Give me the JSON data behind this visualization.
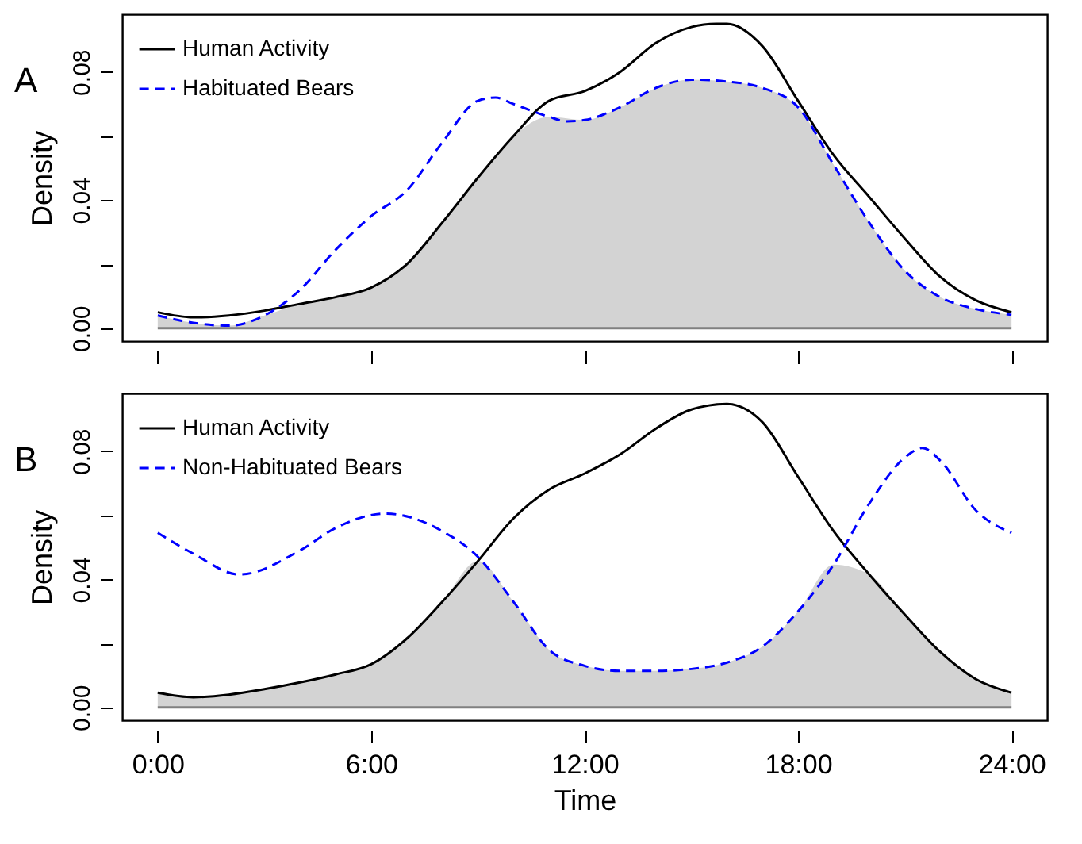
{
  "chart_data": [
    {
      "type": "line",
      "title": "A",
      "ylabel": "Density",
      "xlim": [
        -1,
        25
      ],
      "ylim": [
        -0.004,
        0.098
      ],
      "xticks": [
        {
          "value": 0,
          "label": null
        },
        {
          "value": 6,
          "label": null
        },
        {
          "value": 12,
          "label": null
        },
        {
          "value": 18,
          "label": null
        },
        {
          "value": 24,
          "label": null
        }
      ],
      "yticks": [
        {
          "value": 0,
          "label": "0.00"
        },
        {
          "value": 0.02,
          "label": null
        },
        {
          "value": 0.04,
          "label": "0.04"
        },
        {
          "value": 0.06,
          "label": null
        },
        {
          "value": 0.08,
          "label": "0.08"
        }
      ],
      "tick_labels": "y",
      "grid": false,
      "legend": "top left",
      "ref_lines": [
        {
          "axis": "y",
          "value": 0,
          "color": "#808080"
        }
      ],
      "series": [
        {
          "type": "area",
          "color": "#d3d3d3",
          "x": [
            0,
            1,
            2,
            3,
            4,
            5,
            6,
            7,
            8,
            9,
            10,
            11,
            12,
            13,
            14,
            15,
            16,
            17,
            18,
            19,
            20,
            21,
            22,
            23,
            24
          ],
          "values": [
            0.004,
            0.0017,
            0.0008,
            0.004,
            0.0076,
            0.0097,
            0.0127,
            0.02,
            0.033,
            0.047,
            0.06,
            0.066,
            0.065,
            0.069,
            0.075,
            0.0776,
            0.077,
            0.075,
            0.069,
            0.051,
            0.033,
            0.018,
            0.0097,
            0.006,
            0.0042
          ]
        },
        {
          "name": "Human Activity",
          "color": "#000000",
          "line_style": "solid",
          "x": [
            0,
            1,
            2,
            3,
            4,
            5,
            6,
            7,
            8,
            9,
            10,
            11,
            12,
            13,
            14,
            15,
            15.7,
            16,
            17,
            18,
            19,
            20,
            21,
            22,
            23,
            24
          ],
          "values": [
            0.005,
            0.0034,
            0.004,
            0.0055,
            0.0076,
            0.0097,
            0.0127,
            0.02,
            0.033,
            0.047,
            0.06,
            0.071,
            0.074,
            0.08,
            0.089,
            0.094,
            0.095,
            0.095,
            0.088,
            0.071,
            0.054,
            0.041,
            0.028,
            0.016,
            0.0087,
            0.005
          ]
        },
        {
          "name": "Habituated Bears",
          "color": "#0000ff",
          "line_style": "dashed",
          "x": [
            0,
            1,
            2,
            3,
            4,
            5,
            6,
            7,
            8,
            9,
            9.5,
            10,
            11,
            11.5,
            12,
            13,
            14,
            15,
            16,
            17,
            18,
            19,
            20,
            21,
            22,
            23,
            24
          ],
          "values": [
            0.004,
            0.0017,
            0.0008,
            0.004,
            0.012,
            0.0245,
            0.035,
            0.043,
            0.058,
            0.071,
            0.072,
            0.07,
            0.066,
            0.0646,
            0.065,
            0.069,
            0.075,
            0.0776,
            0.077,
            0.075,
            0.069,
            0.051,
            0.033,
            0.018,
            0.0097,
            0.006,
            0.0042
          ]
        }
      ]
    },
    {
      "type": "line",
      "title": "B",
      "xlabel": "Time",
      "ylabel": "Density",
      "xlim": [
        -1,
        25
      ],
      "ylim": [
        -0.004,
        0.098
      ],
      "xticks": [
        {
          "value": 0,
          "label": "0:00"
        },
        {
          "value": 6,
          "label": "6:00"
        },
        {
          "value": 12,
          "label": "12:00"
        },
        {
          "value": 18,
          "label": "18:00"
        },
        {
          "value": 24,
          "label": "24:00"
        }
      ],
      "yticks": [
        {
          "value": 0,
          "label": "0.00"
        },
        {
          "value": 0.02,
          "label": null
        },
        {
          "value": 0.04,
          "label": "0.04"
        },
        {
          "value": 0.06,
          "label": null
        },
        {
          "value": 0.08,
          "label": "0.08"
        }
      ],
      "grid": false,
      "legend": "top left",
      "ref_lines": [
        {
          "axis": "y",
          "value": 0,
          "color": "#808080"
        }
      ],
      "series": [
        {
          "type": "area",
          "color": "#d3d3d3",
          "x": [
            0,
            1,
            2,
            3,
            4,
            5,
            6,
            7,
            8,
            9,
            10,
            11,
            12,
            13,
            14,
            15,
            16,
            17,
            18,
            19,
            20,
            21,
            22,
            23,
            24
          ],
          "values": [
            0.0046,
            0.0032,
            0.004,
            0.0057,
            0.0078,
            0.0103,
            0.0135,
            0.0215,
            0.033,
            0.0457,
            0.033,
            0.018,
            0.013,
            0.0114,
            0.0114,
            0.012,
            0.014,
            0.019,
            0.03,
            0.0446,
            0.0415,
            0.029,
            0.0173,
            0.0088,
            0.0046
          ]
        },
        {
          "name": "Human Activity",
          "color": "#000000",
          "line_style": "solid",
          "x": [
            0,
            1,
            2,
            3,
            4,
            5,
            6,
            7,
            8,
            9,
            10,
            11,
            12,
            13,
            14,
            15,
            16,
            17,
            18,
            19,
            20,
            21,
            22,
            23,
            24
          ],
          "values": [
            0.0046,
            0.0032,
            0.004,
            0.0057,
            0.0078,
            0.0103,
            0.0135,
            0.0215,
            0.033,
            0.0457,
            0.059,
            0.068,
            0.073,
            0.079,
            0.087,
            0.093,
            0.0947,
            0.089,
            0.072,
            0.055,
            0.0415,
            0.029,
            0.0173,
            0.0088,
            0.0046
          ]
        },
        {
          "name": "Non-Habituated Bears",
          "color": "#0000ff",
          "line_style": "dashed",
          "x": [
            0,
            1,
            2.3,
            4,
            5,
            6.4,
            8,
            9,
            10,
            11,
            12,
            13,
            14,
            15,
            16,
            17,
            18,
            19,
            20,
            21,
            21.5,
            22,
            23,
            24
          ],
          "values": [
            0.0545,
            0.048,
            0.0415,
            0.049,
            0.056,
            0.0605,
            0.055,
            0.047,
            0.033,
            0.018,
            0.013,
            0.0114,
            0.0114,
            0.012,
            0.014,
            0.019,
            0.03,
            0.0446,
            0.0636,
            0.078,
            0.081,
            0.077,
            0.0615,
            0.0545
          ]
        }
      ]
    }
  ]
}
